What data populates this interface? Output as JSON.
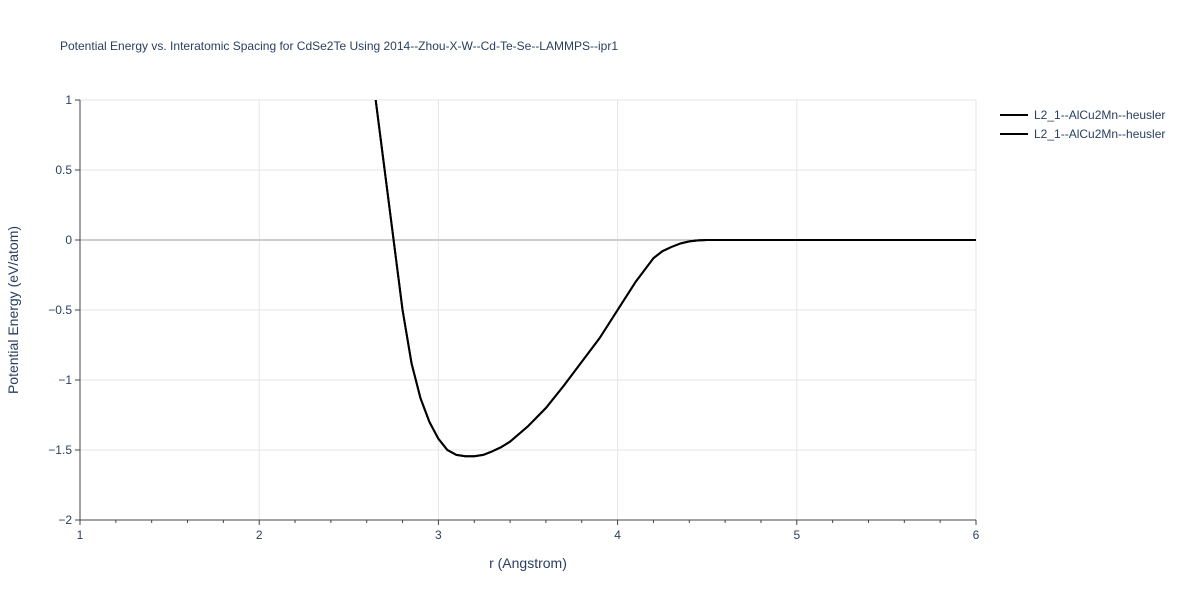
{
  "chart_data": {
    "type": "line",
    "title": "Potential Energy vs. Interatomic Spacing for CdSe2Te Using 2014--Zhou-X-W--Cd-Te-Se--LAMMPS--ipr1",
    "xlabel": "r (Angstrom)",
    "ylabel": "Potential Energy (eV/atom)",
    "xlim": [
      1,
      6
    ],
    "ylim": [
      -2,
      1
    ],
    "x_ticks": [
      1,
      2,
      3,
      4,
      5,
      6
    ],
    "x_tick_labels": [
      "1",
      "2",
      "3",
      "4",
      "5",
      "6"
    ],
    "y_ticks": [
      -2,
      -1.5,
      -1,
      -0.5,
      0,
      0.5,
      1
    ],
    "y_tick_labels": [
      "−2",
      "−1.5",
      "−1",
      "−0.5",
      "0",
      "0.5",
      "1"
    ],
    "grid": true,
    "legend_position": "top-right",
    "line_color": "#000000",
    "series": [
      {
        "name": "L2_1--AlCu2Mn--heusler",
        "x": [
          2.65,
          2.7,
          2.75,
          2.8,
          2.85,
          2.9,
          2.95,
          3.0,
          3.05,
          3.1,
          3.15,
          3.2,
          3.25,
          3.3,
          3.35,
          3.4,
          3.5,
          3.6,
          3.7,
          3.8,
          3.9,
          4.0,
          4.1,
          4.2,
          4.25,
          4.3,
          4.35,
          4.4,
          4.45,
          4.5,
          4.55,
          4.6,
          5.0,
          5.5,
          6.0
        ],
        "y": [
          1.0,
          0.5,
          0.0,
          -0.5,
          -0.88,
          -1.13,
          -1.3,
          -1.42,
          -1.5,
          -1.535,
          -1.545,
          -1.545,
          -1.535,
          -1.51,
          -1.48,
          -1.44,
          -1.33,
          -1.2,
          -1.04,
          -0.87,
          -0.7,
          -0.5,
          -0.3,
          -0.13,
          -0.08,
          -0.05,
          -0.025,
          -0.01,
          -0.003,
          0.0,
          0.0,
          0.0,
          0.0,
          0.0,
          0.0
        ]
      },
      {
        "name": "L2_1--AlCu2Mn--heusler",
        "x": [
          2.65,
          2.7,
          2.75,
          2.8,
          2.85,
          2.9,
          2.95,
          3.0,
          3.05,
          3.1,
          3.15,
          3.2,
          3.25,
          3.3,
          3.35,
          3.4,
          3.5,
          3.6,
          3.7,
          3.8,
          3.9,
          4.0,
          4.1,
          4.2,
          4.25,
          4.3,
          4.35,
          4.4,
          4.45,
          4.5,
          4.55,
          4.6,
          5.0,
          5.5,
          6.0
        ],
        "y": [
          1.0,
          0.5,
          0.0,
          -0.5,
          -0.88,
          -1.13,
          -1.3,
          -1.42,
          -1.5,
          -1.535,
          -1.545,
          -1.545,
          -1.535,
          -1.51,
          -1.48,
          -1.44,
          -1.33,
          -1.2,
          -1.04,
          -0.87,
          -0.7,
          -0.5,
          -0.3,
          -0.13,
          -0.08,
          -0.05,
          -0.025,
          -0.01,
          -0.003,
          0.0,
          0.0,
          0.0,
          0.0,
          0.0,
          0.0
        ]
      }
    ]
  }
}
